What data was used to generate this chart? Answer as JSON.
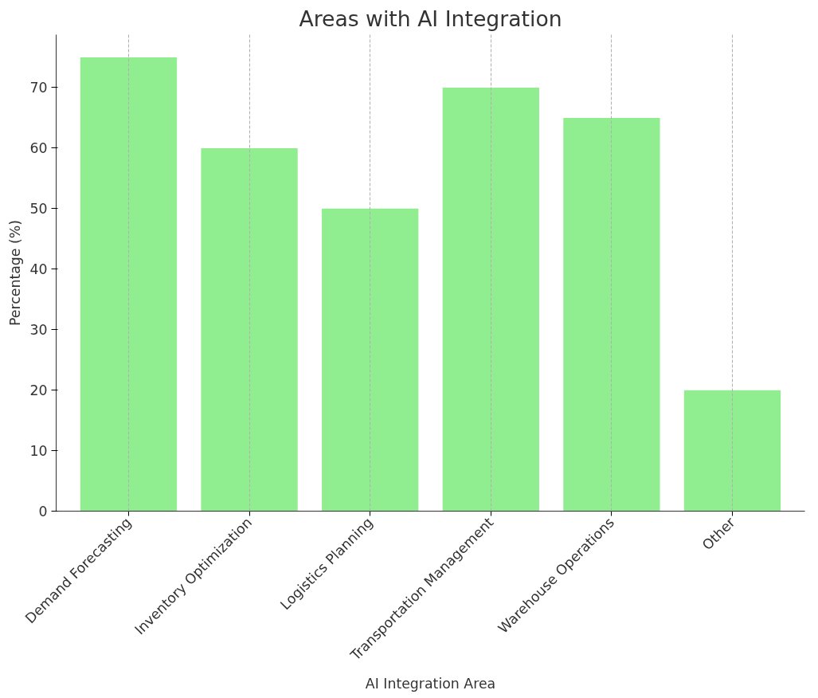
{
  "chart_data": {
    "type": "bar",
    "title": "Areas with AI Integration",
    "xlabel": "AI Integration Area",
    "ylabel": "Percentage (%)",
    "categories": [
      "Demand Forecasting",
      "Inventory Optimization",
      "Logistics Planning",
      "Transportation Management",
      "Warehouse Operations",
      "Other"
    ],
    "values": [
      75,
      60,
      50,
      70,
      65,
      20
    ],
    "color": "#90ee90",
    "ylim": [
      0,
      78.75
    ],
    "yticks": [
      0,
      10,
      20,
      30,
      40,
      50,
      60,
      70
    ],
    "grid": "x"
  }
}
